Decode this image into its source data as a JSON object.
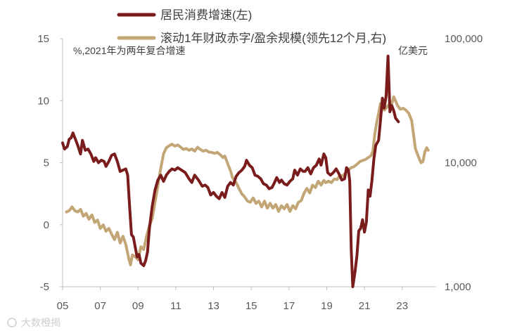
{
  "chart_data": {
    "type": "line",
    "title": "",
    "left_axis": {
      "note": "%,2021年为两年复合增速",
      "ylim": [
        -5,
        15
      ],
      "ticks": [
        15,
        10,
        5,
        0,
        -5
      ],
      "tick_labels": [
        "15",
        "10",
        "5",
        "0",
        "-5"
      ]
    },
    "right_axis": {
      "note": "亿美元",
      "scale": "log",
      "ylim": [
        1000,
        100000
      ],
      "ticks": [
        100000,
        10000,
        1000
      ],
      "tick_labels": [
        "100,000",
        "10,000",
        "1,000"
      ]
    },
    "x_axis": {
      "xlim": [
        2005.0,
        2024.8
      ],
      "ticks": [
        2005,
        2007,
        2009,
        2011,
        2013,
        2015,
        2017,
        2019,
        2021,
        2023
      ],
      "tick_labels": [
        "05",
        "07",
        "09",
        "11",
        "13",
        "15",
        "17",
        "19",
        "21",
        "23"
      ]
    },
    "grid": false,
    "legend_position": "top",
    "series": [
      {
        "name": "居民消费增速(左)",
        "color": "#7a1c1c",
        "axis": "left",
        "points": [
          [
            2005.0,
            6.6
          ],
          [
            2005.1,
            6.1
          ],
          [
            2005.25,
            6.3
          ],
          [
            2005.35,
            6.9
          ],
          [
            2005.45,
            7.0
          ],
          [
            2005.55,
            7.4
          ],
          [
            2005.7,
            6.8
          ],
          [
            2005.8,
            6.4
          ],
          [
            2005.95,
            5.7
          ],
          [
            2006.05,
            6.8
          ],
          [
            2006.2,
            6.0
          ],
          [
            2006.35,
            6.1
          ],
          [
            2006.5,
            5.7
          ],
          [
            2006.65,
            5.1
          ],
          [
            2006.75,
            5.4
          ],
          [
            2006.9,
            5.0
          ],
          [
            2007.05,
            5.2
          ],
          [
            2007.2,
            5.1
          ],
          [
            2007.3,
            4.7
          ],
          [
            2007.45,
            5.1
          ],
          [
            2007.6,
            5.6
          ],
          [
            2007.75,
            5.7
          ],
          [
            2007.9,
            5.1
          ],
          [
            2008.05,
            4.3
          ],
          [
            2008.2,
            4.4
          ],
          [
            2008.35,
            4.5
          ],
          [
            2008.45,
            4.0
          ],
          [
            2008.55,
            1.5
          ],
          [
            2008.65,
            -0.8
          ],
          [
            2008.75,
            -1.0
          ],
          [
            2008.85,
            -1.8
          ],
          [
            2008.95,
            -2.6
          ],
          [
            2009.05,
            -2.4
          ],
          [
            2009.15,
            -3.1
          ],
          [
            2009.3,
            -3.3
          ],
          [
            2009.4,
            -2.9
          ],
          [
            2009.5,
            -2.2
          ],
          [
            2009.6,
            -0.3
          ],
          [
            2009.75,
            1.5
          ],
          [
            2009.9,
            2.8
          ],
          [
            2010.05,
            3.6
          ],
          [
            2010.2,
            4.0
          ],
          [
            2010.35,
            3.5
          ],
          [
            2010.5,
            4.0
          ],
          [
            2010.65,
            4.3
          ],
          [
            2010.8,
            4.5
          ],
          [
            2010.95,
            4.4
          ],
          [
            2011.1,
            4.6
          ],
          [
            2011.3,
            4.4
          ],
          [
            2011.5,
            4.2
          ],
          [
            2011.7,
            3.7
          ],
          [
            2011.85,
            3.4
          ],
          [
            2012.0,
            4.0
          ],
          [
            2012.2,
            3.6
          ],
          [
            2012.4,
            3.1
          ],
          [
            2012.55,
            3.2
          ],
          [
            2012.7,
            3.0
          ],
          [
            2012.85,
            2.4
          ],
          [
            2013.0,
            2.6
          ],
          [
            2013.15,
            2.3
          ],
          [
            2013.3,
            2.1
          ],
          [
            2013.45,
            2.6
          ],
          [
            2013.6,
            2.2
          ],
          [
            2013.75,
            3.1
          ],
          [
            2013.9,
            3.4
          ],
          [
            2014.05,
            3.2
          ],
          [
            2014.2,
            3.9
          ],
          [
            2014.35,
            4.2
          ],
          [
            2014.5,
            4.4
          ],
          [
            2014.65,
            4.7
          ],
          [
            2014.75,
            5.2
          ],
          [
            2014.9,
            4.8
          ],
          [
            2015.05,
            4.6
          ],
          [
            2015.2,
            4.0
          ],
          [
            2015.35,
            3.9
          ],
          [
            2015.5,
            3.7
          ],
          [
            2015.65,
            3.3
          ],
          [
            2015.8,
            3.2
          ],
          [
            2015.95,
            2.9
          ],
          [
            2016.1,
            3.0
          ],
          [
            2016.2,
            3.3
          ],
          [
            2016.35,
            3.8
          ],
          [
            2016.5,
            3.4
          ],
          [
            2016.6,
            3.6
          ],
          [
            2016.75,
            3.3
          ],
          [
            2016.9,
            3.2
          ],
          [
            2017.05,
            3.5
          ],
          [
            2017.2,
            3.7
          ],
          [
            2017.3,
            4.4
          ],
          [
            2017.45,
            4.0
          ],
          [
            2017.6,
            4.5
          ],
          [
            2017.75,
            4.3
          ],
          [
            2017.85,
            4.3
          ],
          [
            2018.0,
            4.6
          ],
          [
            2018.15,
            4.1
          ],
          [
            2018.3,
            4.6
          ],
          [
            2018.45,
            4.8
          ],
          [
            2018.6,
            5.3
          ],
          [
            2018.7,
            4.8
          ],
          [
            2018.85,
            5.7
          ],
          [
            2018.95,
            5.4
          ],
          [
            2019.05,
            4.2
          ],
          [
            2019.2,
            4.0
          ],
          [
            2019.35,
            4.2
          ],
          [
            2019.5,
            4.5
          ],
          [
            2019.65,
            4.1
          ],
          [
            2019.8,
            3.6
          ],
          [
            2019.95,
            3.7
          ],
          [
            2020.05,
            4.6
          ],
          [
            2020.15,
            4.4
          ],
          [
            2020.22,
            3.5
          ],
          [
            2020.3,
            -2.0
          ],
          [
            2020.38,
            -5.0
          ],
          [
            2020.5,
            -3.8
          ],
          [
            2020.6,
            -2.5
          ],
          [
            2020.7,
            -0.5
          ],
          [
            2020.8,
            -0.3
          ],
          [
            2020.9,
            0.4
          ],
          [
            2021.0,
            -0.6
          ],
          [
            2021.1,
            0.2
          ],
          [
            2021.2,
            2.8
          ],
          [
            2021.3,
            2.3
          ],
          [
            2021.4,
            3.6
          ],
          [
            2021.5,
            5.3
          ],
          [
            2021.6,
            6.4
          ],
          [
            2021.75,
            6.8
          ],
          [
            2021.85,
            8.4
          ],
          [
            2021.95,
            10.2
          ],
          [
            2022.05,
            9.4
          ],
          [
            2022.15,
            10.4
          ],
          [
            2022.25,
            13.6
          ],
          [
            2022.35,
            9.1
          ],
          [
            2022.45,
            9.6
          ],
          [
            2022.55,
            9.2
          ],
          [
            2022.65,
            8.6
          ],
          [
            2022.8,
            8.3
          ]
        ]
      },
      {
        "name": "滚动1年财政赤字/盈余规模(领先12个月,右)",
        "color": "#c3a676",
        "axis": "right",
        "points": [
          [
            2005.2,
            4000
          ],
          [
            2005.35,
            4100
          ],
          [
            2005.5,
            4400
          ],
          [
            2005.65,
            4100
          ],
          [
            2005.8,
            4000
          ],
          [
            2005.95,
            4200
          ],
          [
            2006.1,
            3700
          ],
          [
            2006.25,
            3900
          ],
          [
            2006.4,
            3500
          ],
          [
            2006.55,
            3800
          ],
          [
            2006.7,
            3300
          ],
          [
            2006.85,
            3450
          ],
          [
            2007.0,
            2950
          ],
          [
            2007.15,
            3150
          ],
          [
            2007.3,
            2800
          ],
          [
            2007.45,
            2950
          ],
          [
            2007.6,
            2650
          ],
          [
            2007.75,
            2400
          ],
          [
            2007.9,
            2750
          ],
          [
            2008.05,
            2250
          ],
          [
            2008.2,
            2550
          ],
          [
            2008.35,
            2200
          ],
          [
            2008.5,
            1700
          ],
          [
            2008.6,
            1500
          ],
          [
            2008.7,
            1800
          ],
          [
            2008.85,
            1750
          ],
          [
            2009.0,
            1650
          ],
          [
            2009.15,
            2100
          ],
          [
            2009.3,
            2000
          ],
          [
            2009.45,
            2550
          ],
          [
            2009.6,
            3100
          ],
          [
            2009.75,
            3550
          ],
          [
            2009.9,
            4800
          ],
          [
            2010.05,
            6500
          ],
          [
            2010.2,
            9000
          ],
          [
            2010.35,
            11800
          ],
          [
            2010.5,
            13200
          ],
          [
            2010.65,
            13700
          ],
          [
            2010.8,
            14100
          ],
          [
            2010.95,
            13600
          ],
          [
            2011.1,
            13900
          ],
          [
            2011.25,
            13400
          ],
          [
            2011.4,
            12800
          ],
          [
            2011.55,
            13000
          ],
          [
            2011.7,
            12600
          ],
          [
            2011.85,
            12900
          ],
          [
            2012.0,
            12400
          ],
          [
            2012.15,
            13300
          ],
          [
            2012.3,
            12800
          ],
          [
            2012.45,
            12400
          ],
          [
            2012.6,
            12600
          ],
          [
            2012.75,
            12200
          ],
          [
            2012.9,
            12100
          ],
          [
            2013.05,
            11900
          ],
          [
            2013.2,
            12100
          ],
          [
            2013.35,
            11600
          ],
          [
            2013.5,
            11000
          ],
          [
            2013.6,
            11300
          ],
          [
            2013.7,
            10300
          ],
          [
            2013.8,
            9400
          ],
          [
            2013.9,
            8600
          ],
          [
            2014.0,
            7600
          ],
          [
            2014.1,
            7200
          ],
          [
            2014.2,
            6900
          ],
          [
            2014.35,
            6200
          ],
          [
            2014.5,
            5600
          ],
          [
            2014.65,
            5300
          ],
          [
            2014.8,
            4900
          ],
          [
            2014.95,
            4800
          ],
          [
            2015.1,
            5200
          ],
          [
            2015.25,
            4700
          ],
          [
            2015.4,
            4900
          ],
          [
            2015.55,
            4400
          ],
          [
            2015.7,
            4900
          ],
          [
            2015.85,
            4300
          ],
          [
            2016.0,
            4700
          ],
          [
            2016.15,
            4300
          ],
          [
            2016.3,
            4600
          ],
          [
            2016.45,
            4050
          ],
          [
            2016.6,
            4500
          ],
          [
            2016.75,
            4250
          ],
          [
            2016.9,
            4600
          ],
          [
            2017.05,
            4050
          ],
          [
            2017.2,
            4500
          ],
          [
            2017.35,
            4250
          ],
          [
            2017.5,
            4800
          ],
          [
            2017.65,
            4950
          ],
          [
            2017.8,
            5700
          ],
          [
            2017.95,
            6200
          ],
          [
            2018.1,
            5700
          ],
          [
            2018.25,
            6600
          ],
          [
            2018.4,
            6300
          ],
          [
            2018.55,
            7100
          ],
          [
            2018.7,
            6600
          ],
          [
            2018.85,
            7200
          ],
          [
            2018.95,
            6900
          ],
          [
            2019.1,
            7100
          ],
          [
            2019.25,
            6900
          ],
          [
            2019.4,
            7400
          ],
          [
            2019.55,
            7300
          ],
          [
            2019.7,
            7900
          ],
          [
            2019.85,
            7800
          ],
          [
            2020.0,
            8300
          ],
          [
            2020.15,
            8800
          ],
          [
            2020.3,
            9100
          ],
          [
            2020.45,
            9300
          ],
          [
            2020.6,
            9700
          ],
          [
            2020.75,
            10200
          ],
          [
            2020.9,
            10400
          ],
          [
            2021.05,
            10600
          ],
          [
            2021.2,
            11000
          ],
          [
            2021.35,
            11400
          ],
          [
            2021.45,
            12500
          ],
          [
            2021.55,
            17000
          ],
          [
            2021.65,
            21000
          ],
          [
            2021.75,
            25000
          ],
          [
            2021.85,
            30000
          ],
          [
            2021.95,
            28000
          ],
          [
            2022.05,
            26500
          ],
          [
            2022.15,
            27500
          ],
          [
            2022.3,
            29500
          ],
          [
            2022.45,
            30000
          ],
          [
            2022.55,
            34000
          ],
          [
            2022.65,
            31500
          ],
          [
            2022.75,
            29000
          ],
          [
            2022.9,
            27000
          ],
          [
            2023.05,
            27500
          ],
          [
            2023.2,
            26500
          ],
          [
            2023.35,
            25000
          ],
          [
            2023.5,
            22000
          ],
          [
            2023.6,
            17000
          ],
          [
            2023.7,
            13000
          ],
          [
            2023.8,
            11800
          ],
          [
            2023.9,
            10800
          ],
          [
            2024.0,
            10000
          ],
          [
            2024.1,
            10200
          ],
          [
            2024.2,
            12200
          ],
          [
            2024.3,
            13200
          ],
          [
            2024.38,
            12600
          ]
        ]
      }
    ]
  },
  "watermark": "大数橙揭"
}
